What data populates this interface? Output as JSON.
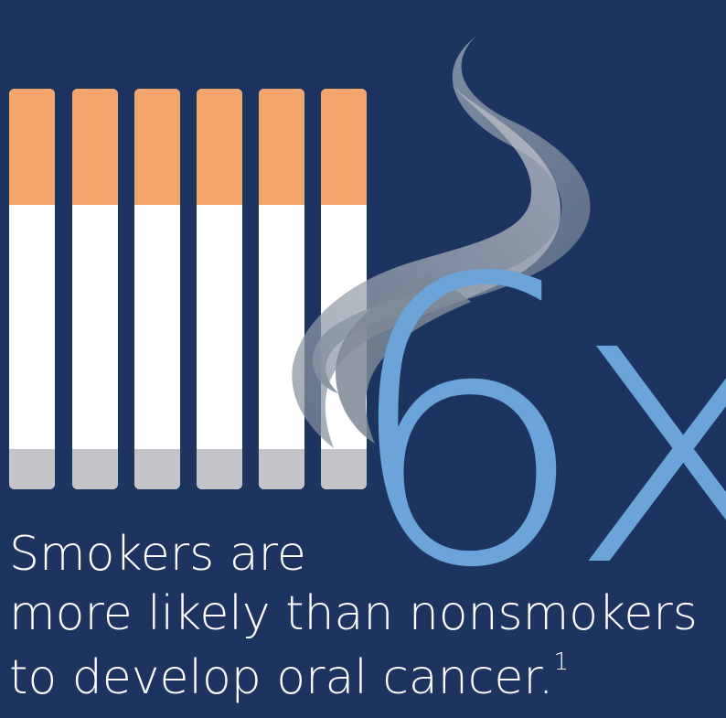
{
  "colors": {
    "background": "#1d3461",
    "filter": "#f5a66c",
    "paper": "#ffffff",
    "ash": "#c4c5c8",
    "accent": "#6aa4d9",
    "smoke": "#8b9bad"
  },
  "cigarette_count": 6,
  "headline": {
    "number": "6x"
  },
  "caption": {
    "line1": "Smokers are",
    "line2": "more likely than nonsmokers",
    "line3": "to develop oral cancer.",
    "footnote": "1"
  }
}
